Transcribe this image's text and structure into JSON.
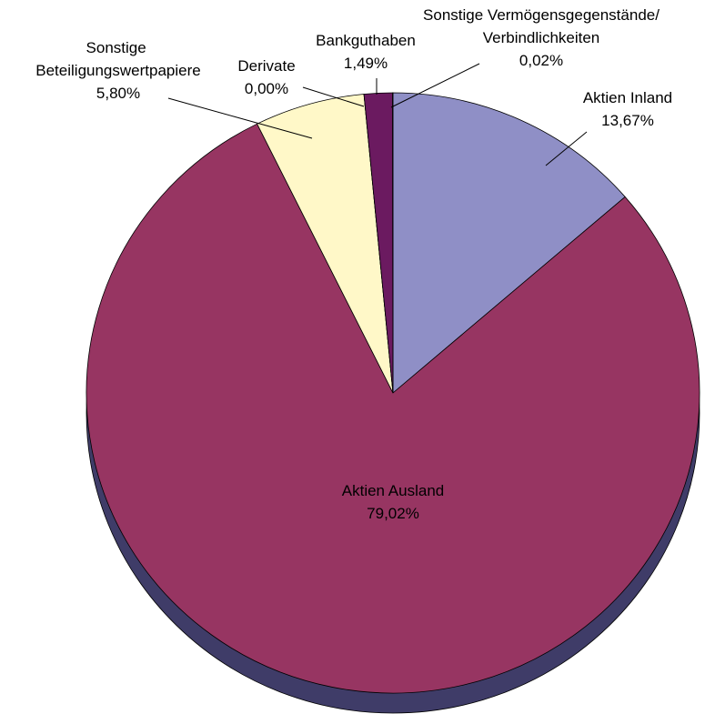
{
  "chart_data": {
    "type": "pie",
    "categories": [
      "Aktien Inland",
      "Aktien Ausland",
      "Sonstige Beteiligungswertpapiere",
      "Derivate",
      "Bankguthaben",
      "Sonstige Vermögensgegenstände/Verbindlichkeiten"
    ],
    "values": [
      13.67,
      79.02,
      5.8,
      0.0,
      1.49,
      0.02
    ],
    "value_labels": [
      "13,67%",
      "79,02%",
      "5,80%",
      "0,00%",
      "1,49%",
      "0,02%"
    ],
    "colors": [
      "#8f8fc6",
      "#973562",
      "#fff8c8",
      "#d0d0d0",
      "#6b1a60",
      "#ffffff"
    ]
  }
}
